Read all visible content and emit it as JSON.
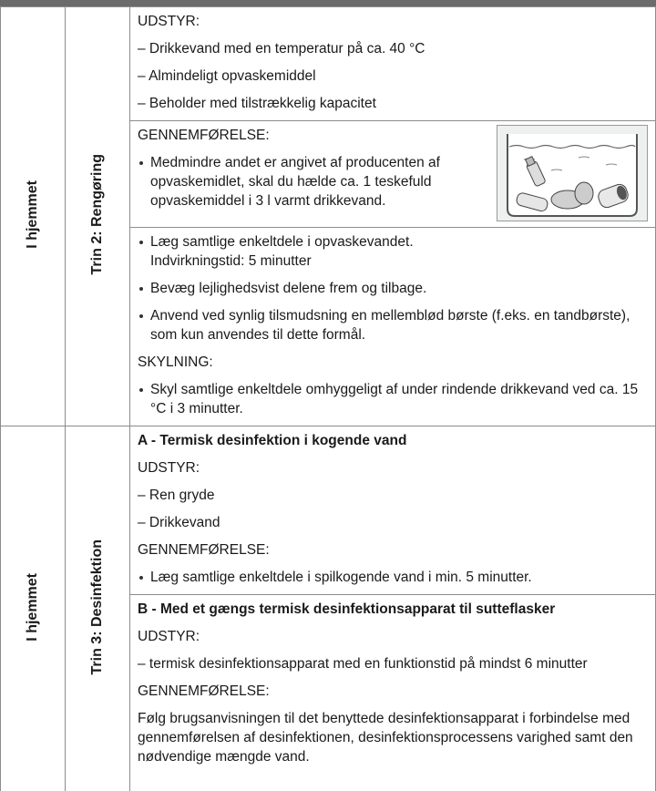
{
  "sections": [
    {
      "location": "I hjemmet",
      "step": "Trin 2: Rengøring",
      "blocks": [
        {
          "lines": [
            {
              "text": "UDSTYR:",
              "style": "plain"
            },
            {
              "text": "– Drikkevand med en temperatur på ca. 40 °C",
              "style": "plain"
            },
            {
              "text": "– Almindeligt opvaskemiddel",
              "style": "plain"
            },
            {
              "text": "– Beholder med tilstrækkelig kapacitet",
              "style": "plain"
            }
          ]
        },
        {
          "image": true,
          "lines": [
            {
              "text": "GENNEMFØRELSE:",
              "style": "plain"
            },
            {
              "text": "Medmindre andet er angivet af producenten af opvaskemidlet, skal du hælde ca. 1 teskefuld opvaskemiddel i 3 l varmt drikkevand.",
              "style": "bullet"
            }
          ]
        },
        {
          "lines": [
            {
              "text": "Læg samtlige enkeltdele i opvaskevandet.",
              "style": "bullet"
            },
            {
              "text": "Indvirkningstid: 5 minutter",
              "style": "cont"
            },
            {
              "text": "Bevæg lejlighedsvist delene frem og tilbage.",
              "style": "bullet"
            },
            {
              "text": "Anvend ved synlig tilsmudsning en mellemblød børste (f.eks. en tandbørste), som kun anvendes til dette formål.",
              "style": "bullet"
            },
            {
              "text": "SKYLNING:",
              "style": "plain"
            },
            {
              "text": "Skyl samtlige enkeltdele omhyggeligt af under rindende drikkevand ved ca. 15 °C i 3 minutter.",
              "style": "bullet"
            }
          ]
        }
      ]
    },
    {
      "location": "I hjemmet",
      "step": "Trin 3: Desinfektion",
      "blocks": [
        {
          "lines": [
            {
              "text": "A - Termisk desinfektion i kogende vand",
              "style": "bold"
            },
            {
              "text": "UDSTYR:",
              "style": "plain"
            },
            {
              "text": "– Ren gryde",
              "style": "plain"
            },
            {
              "text": "– Drikkevand",
              "style": "plain"
            },
            {
              "text": "GENNEMFØRELSE:",
              "style": "plain"
            },
            {
              "text": "Læg samtlige enkeltdele i spilkogende vand i min. 5 minutter.",
              "style": "bullet"
            }
          ]
        },
        {
          "lines": [
            {
              "text": "B - Med et gængs termisk desinfektionsapparat til sutteflasker",
              "style": "bold"
            },
            {
              "text": "UDSTYR:",
              "style": "plain"
            },
            {
              "text": "– termisk desinfektionsapparat med en funktionstid på mindst 6 minutter",
              "style": "plain"
            },
            {
              "text": "GENNEMFØRELSE:",
              "style": "plain"
            },
            {
              "text": "Følg brugsanvisningen til det benyttede desinfektionsapparat i forbindelse med gennemførelsen af desinfektionen, desinfektionsprocessens varighed samt den nødvendige mængde vand.",
              "style": "plain"
            }
          ]
        }
      ]
    }
  ]
}
